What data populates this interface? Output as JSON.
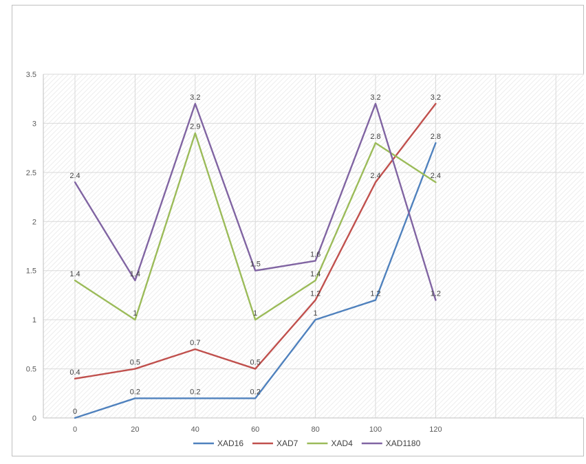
{
  "chart_data": {
    "type": "line",
    "title": "",
    "xlabel": "",
    "ylabel": "",
    "categories": [
      "0",
      "20",
      "40",
      "60",
      "80",
      "100",
      "120"
    ],
    "series": [
      {
        "name": "XAD16",
        "color": "#4F81BD",
        "values": [
          0,
          0.2,
          0.2,
          0.2,
          1,
          1.2,
          2.8
        ]
      },
      {
        "name": "XAD7",
        "color": "#C0504D",
        "values": [
          0.4,
          0.5,
          0.7,
          0.5,
          1.2,
          2.4,
          3.2
        ]
      },
      {
        "name": "XAD4",
        "color": "#9BBB59",
        "values": [
          1.4,
          1,
          2.9,
          1,
          1.4,
          2.8,
          2.4
        ]
      },
      {
        "name": "XAD1180",
        "color": "#8064A2",
        "values": [
          2.4,
          1.4,
          3.2,
          1.5,
          1.6,
          3.2,
          1.2
        ]
      }
    ],
    "y_tick_labels": [
      "0",
      "0.5",
      "1",
      "1.5",
      "2",
      "2.5",
      "3",
      "3.5"
    ],
    "ylim": [
      0,
      3.5
    ],
    "ytick_step": 0.5,
    "grid": true,
    "data_labels": true,
    "legend_position": "bottom",
    "colors": {
      "gridline": "#d9d9d9",
      "axis_line": "#bfbfbf",
      "tick_text": "#595959",
      "data_label_text": "#404040",
      "plot_hatch": "#e9e9e9"
    }
  }
}
